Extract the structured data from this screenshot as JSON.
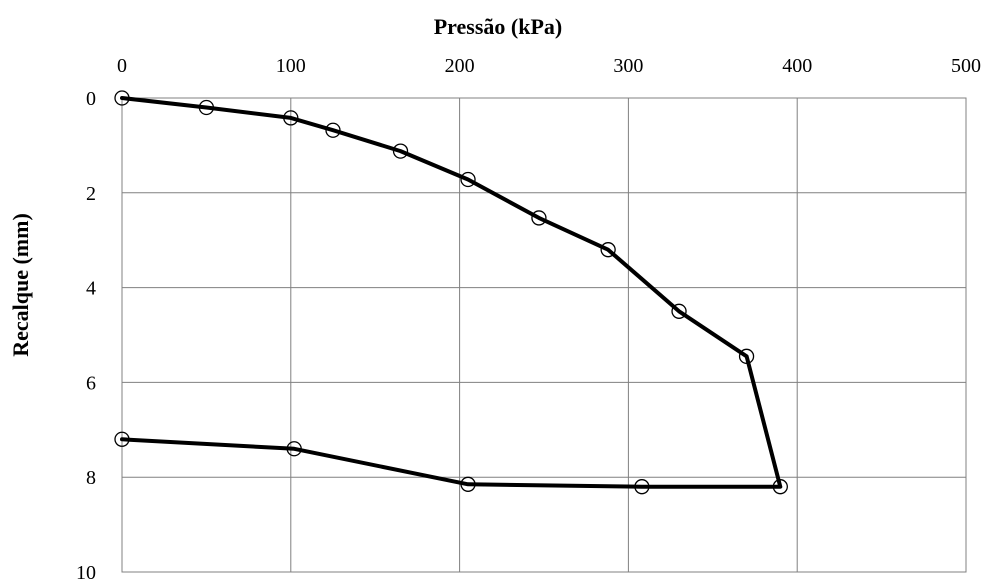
{
  "chart_data": {
    "type": "line",
    "xlabel": "Pressão (kPa)",
    "ylabel": "Recalque (mm)",
    "xlim": [
      0,
      500
    ],
    "ylim": [
      0,
      10
    ],
    "y_inverted": true,
    "x_axis_position": "top",
    "x_ticks": [
      "0",
      "100",
      "200",
      "300",
      "400",
      "500"
    ],
    "y_ticks": [
      "0",
      "2",
      "4",
      "6",
      "8",
      "10"
    ],
    "grid": true,
    "legend": "none",
    "line_color": "#000000",
    "marker": "open-circle",
    "series": [
      {
        "x": [
          0,
          50,
          100,
          125,
          165,
          205,
          247,
          288,
          330,
          370,
          390,
          308,
          205,
          102,
          0
        ],
        "y": [
          0,
          0.2,
          0.42,
          0.68,
          1.12,
          1.72,
          2.53,
          3.2,
          4.5,
          5.45,
          8.2,
          8.2,
          8.15,
          7.4,
          7.2
        ]
      }
    ]
  }
}
